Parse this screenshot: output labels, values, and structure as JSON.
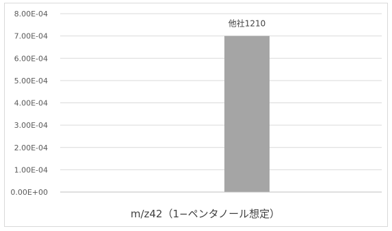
{
  "chart_data": {
    "type": "bar",
    "categories": [
      ""
    ],
    "series": [
      {
        "values": [
          0.0007
        ],
        "data_label": "他社1210"
      }
    ],
    "xlabel": "m/z42（1−ペンタノール想定）",
    "ylabel": "",
    "ylim": [
      0,
      0.0008
    ],
    "y_ticks": [
      "0.00E+00",
      "1.00E-04",
      "2.00E-04",
      "3.00E-04",
      "4.00E-04",
      "5.00E-04",
      "6.00E-04",
      "7.00E-04",
      "8.00E-04"
    ],
    "grid": true,
    "legend": "none",
    "colors": {
      "bar": "#a5a5a5",
      "grid": "#d9d9d9",
      "axis": "#bfbfbf"
    }
  }
}
